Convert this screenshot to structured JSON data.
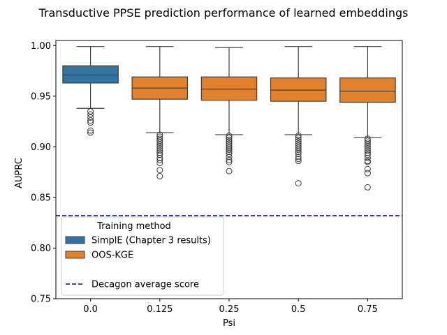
{
  "chart_data": {
    "type": "box",
    "title": "Transductive PPSE prediction performance of learned embeddings",
    "xlabel": "Psi",
    "ylabel": "AUPRC",
    "ylim": [
      0.75,
      1.005
    ],
    "yticks": [
      "0.75",
      "0.80",
      "0.85",
      "0.90",
      "0.95",
      "1.00"
    ],
    "categories": [
      "0.0",
      "0.125",
      "0.25",
      "0.5",
      "0.75"
    ],
    "boxes": [
      {
        "category": "0.0",
        "series": "SimplE (Chapter 3 results)",
        "whisker_low": 0.938,
        "q1": 0.963,
        "median": 0.971,
        "q3": 0.98,
        "whisker_high": 0.999,
        "outliers": [
          0.935,
          0.932,
          0.929,
          0.926,
          0.924,
          0.916,
          0.914
        ]
      },
      {
        "category": "0.125",
        "series": "OOS-KGE",
        "whisker_low": 0.914,
        "q1": 0.947,
        "median": 0.958,
        "q3": 0.969,
        "whisker_high": 0.999,
        "outliers": [
          0.912,
          0.91,
          0.908,
          0.906,
          0.904,
          0.902,
          0.9,
          0.898,
          0.896,
          0.894,
          0.892,
          0.889,
          0.887,
          0.884,
          0.877,
          0.871
        ]
      },
      {
        "category": "0.25",
        "series": "OOS-KGE",
        "whisker_low": 0.912,
        "q1": 0.946,
        "median": 0.957,
        "q3": 0.969,
        "whisker_high": 0.998,
        "outliers": [
          0.911,
          0.909,
          0.907,
          0.905,
          0.903,
          0.901,
          0.899,
          0.897,
          0.895,
          0.893,
          0.89,
          0.887,
          0.885,
          0.876
        ]
      },
      {
        "category": "0.5",
        "series": "OOS-KGE",
        "whisker_low": 0.912,
        "q1": 0.945,
        "median": 0.956,
        "q3": 0.968,
        "whisker_high": 0.999,
        "outliers": [
          0.911,
          0.909,
          0.907,
          0.905,
          0.903,
          0.901,
          0.899,
          0.897,
          0.895,
          0.893,
          0.89,
          0.888,
          0.886,
          0.864
        ]
      },
      {
        "category": "0.75",
        "series": "OOS-KGE",
        "whisker_low": 0.909,
        "q1": 0.944,
        "median": 0.955,
        "q3": 0.968,
        "whisker_high": 0.999,
        "outliers": [
          0.908,
          0.906,
          0.904,
          0.902,
          0.9,
          0.898,
          0.896,
          0.894,
          0.892,
          0.889,
          0.886,
          0.885,
          0.878,
          0.874,
          0.86
        ]
      }
    ],
    "reference_line": {
      "name": "Decagon average score",
      "value": 0.832,
      "color": "#0000cc",
      "style": "dashed"
    },
    "legend": {
      "title": "Training method",
      "placement": "lower-left",
      "entries": [
        {
          "label": "SimplE (Chapter 3 results)",
          "color": "#3274a1",
          "kind": "box"
        },
        {
          "label": "OOS-KGE",
          "color": "#e1812c",
          "kind": "box"
        },
        {
          "label": "Decagon average score",
          "color": "#0000cc",
          "kind": "dashed-line"
        }
      ]
    },
    "colors": {
      "SimplE (Chapter 3 results)": "#3274a1",
      "OOS-KGE": "#e1812c"
    }
  }
}
